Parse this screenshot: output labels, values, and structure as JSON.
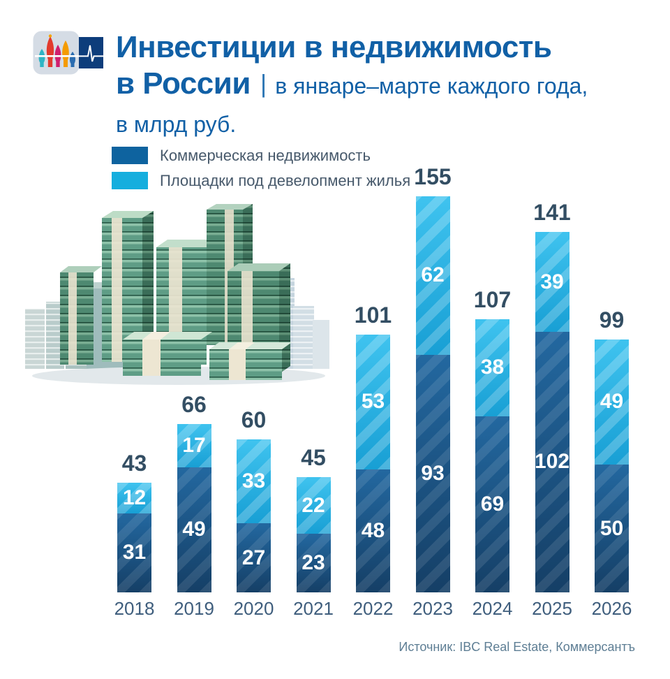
{
  "header": {
    "title_line1": "Инвестиции в недвижимость",
    "title_line2_bold": "в России",
    "separator": "|",
    "subtitle_line1": "в январе–марте каждого года,",
    "subtitle_line2": "в млрд руб."
  },
  "legend": {
    "items": [
      {
        "label": "Коммерческая недвижимость",
        "color": "#0e639f"
      },
      {
        "label": "Площадки под девелопмент жилья",
        "color": "#16aede"
      }
    ]
  },
  "chart_data": {
    "type": "bar",
    "stacked": true,
    "title": "Инвестиции в недвижимость в России",
    "subtitle": "в январе–марте каждого года, в млрд руб.",
    "categories": [
      "2018",
      "2019",
      "2020",
      "2021",
      "2022",
      "2023",
      "2024",
      "2025",
      "2026"
    ],
    "series": [
      {
        "name": "Коммерческая недвижимость",
        "values": [
          31,
          49,
          27,
          23,
          48,
          93,
          69,
          102,
          50
        ],
        "color_top": "#2368a0",
        "color_bottom": "#153f66"
      },
      {
        "name": "Площадки под девелопмент жилья",
        "values": [
          12,
          17,
          33,
          22,
          53,
          62,
          38,
          39,
          49
        ],
        "color_top": "#3fc3ef",
        "color_bottom": "#189fd4"
      }
    ],
    "totals": [
      43,
      66,
      60,
      45,
      101,
      155,
      107,
      141,
      99
    ],
    "ylim": [
      0,
      160
    ],
    "grid": false,
    "legend_position": "top-left",
    "value_labels": "inside-segments-white",
    "total_labels": "above-bars",
    "hatch": "diagonal-stripes"
  },
  "icons": {
    "logo_left": "st-basils-cathedral-icon",
    "logo_right": "pulse-line-icon",
    "illustration": "money-stack-buildings-illustration"
  },
  "colors": {
    "title_blue": "#1160a6",
    "total_label": "#334e63",
    "axis_label": "#3f5e7d",
    "legend_text": "#47596b",
    "source_text": "#5e7e94"
  },
  "footer": {
    "source": "Источник: IBC Real Estate, Коммерсантъ"
  }
}
